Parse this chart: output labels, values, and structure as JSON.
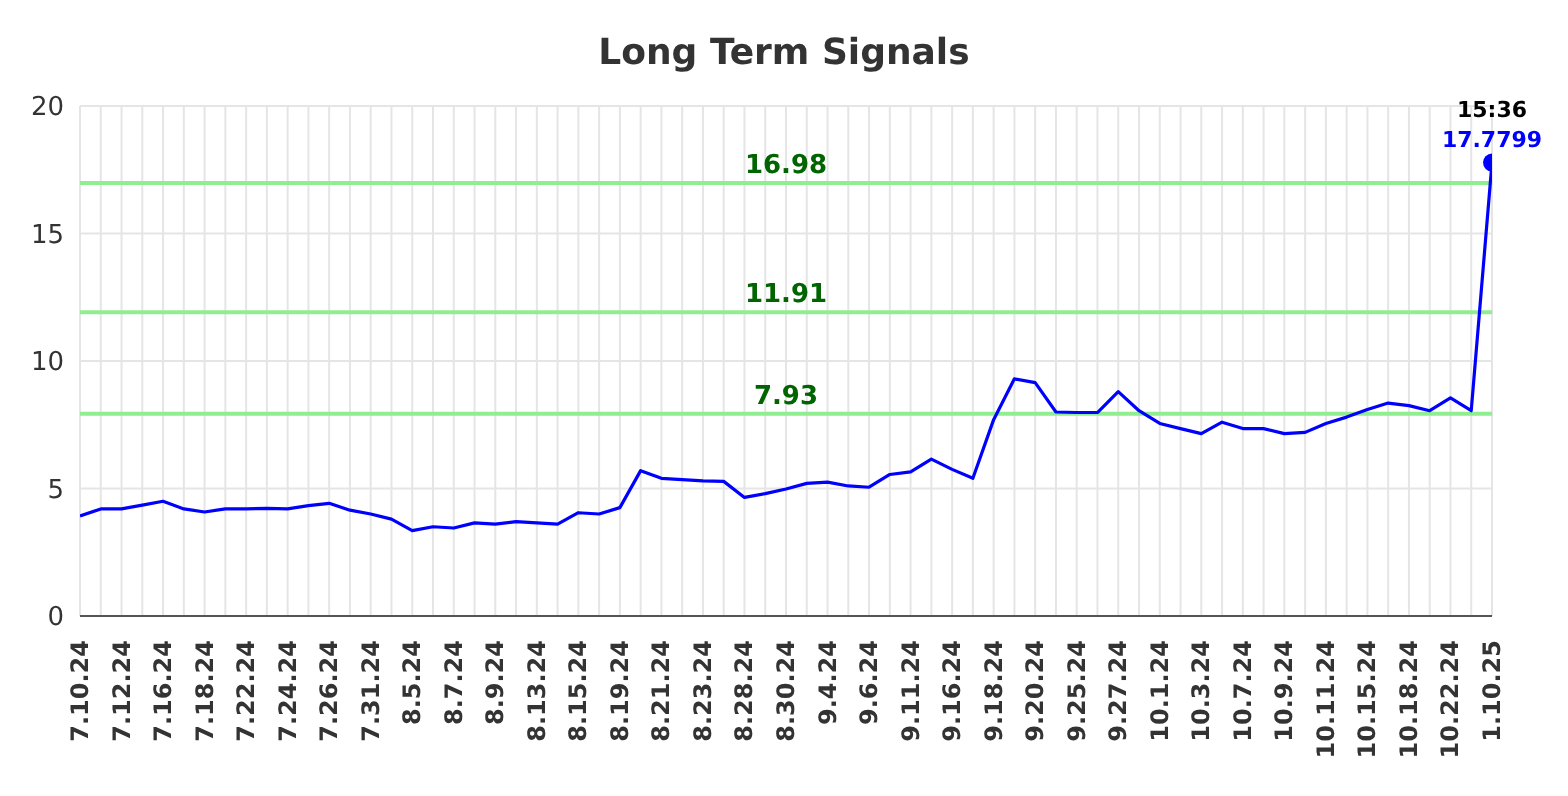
{
  "chart_data": {
    "type": "line",
    "title": "Long Term Signals",
    "categories": [
      "7.10.24",
      null,
      "7.12.24",
      null,
      "7.16.24",
      null,
      "7.18.24",
      null,
      "7.22.24",
      null,
      "7.24.24",
      null,
      "7.26.24",
      null,
      "7.31.24",
      null,
      "8.5.24",
      null,
      "8.7.24",
      null,
      "8.9.24",
      null,
      "8.13.24",
      null,
      "8.15.24",
      null,
      "8.19.24",
      null,
      "8.21.24",
      null,
      "8.23.24",
      null,
      "8.28.24",
      null,
      "8.30.24",
      null,
      "9.4.24",
      null,
      "9.6.24",
      null,
      "9.11.24",
      null,
      "9.16.24",
      null,
      "9.18.24",
      null,
      "9.20.24",
      null,
      "9.25.24",
      null,
      "9.27.24",
      null,
      "10.1.24",
      null,
      "10.3.24",
      null,
      "10.7.24",
      null,
      "10.9.24",
      null,
      "10.11.24",
      null,
      "10.15.24",
      null,
      "10.18.24",
      null,
      "10.22.24",
      null,
      "1.10.25"
    ],
    "series": [
      {
        "color": "#0000ff",
        "values": [
          3.92,
          4.2,
          4.2,
          4.35,
          4.5,
          4.2,
          4.08,
          4.2,
          4.2,
          4.22,
          4.2,
          4.33,
          4.42,
          4.15,
          4.0,
          3.8,
          3.35,
          3.5,
          3.45,
          3.65,
          3.6,
          3.7,
          3.65,
          3.6,
          4.05,
          4.0,
          4.25,
          5.7,
          5.4,
          5.35,
          5.3,
          5.28,
          4.65,
          4.8,
          4.98,
          5.2,
          5.25,
          5.1,
          5.05,
          5.55,
          5.65,
          6.15,
          5.75,
          5.4,
          7.7,
          9.3,
          9.15,
          8.0,
          7.98,
          7.98,
          8.8,
          8.05,
          7.55,
          7.35,
          7.15,
          7.6,
          7.35,
          7.35,
          7.15,
          7.2,
          7.55,
          7.8,
          8.1,
          8.35,
          8.25,
          8.05,
          8.55,
          8.05,
          17.7799
        ]
      },
      {
        "type": "scatter",
        "color": "#0000ff",
        "x": [
          "1.10.25"
        ],
        "values": [
          17.7799
        ],
        "marker": "circle"
      }
    ],
    "ylim": [
      0,
      20
    ],
    "yticks": [
      0,
      5,
      10,
      15,
      20
    ],
    "grid": true,
    "legend": false,
    "marker": "none",
    "ref_lines": [
      {
        "axis": "y",
        "value": 16.98,
        "label": "16.98",
        "color": "#90ee90"
      },
      {
        "axis": "y",
        "value": 11.91,
        "label": "11.91",
        "color": "#90ee90"
      },
      {
        "axis": "y",
        "value": 7.93,
        "label": "7.93",
        "color": "#90ee90"
      }
    ],
    "annotations": [
      {
        "text": "15:36",
        "x": "1.10.25",
        "y": 17.7799
      },
      {
        "text": "17.7799",
        "x": "1.10.25",
        "y": 17.7799
      }
    ]
  }
}
